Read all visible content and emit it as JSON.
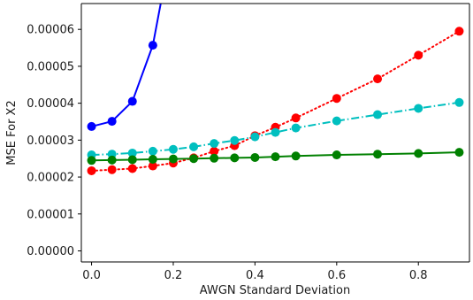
{
  "chart_data": {
    "type": "line",
    "xlabel": "AWGN Standard Deviation",
    "ylabel": "MSE For X2",
    "xlim": [
      -0.025,
      0.925
    ],
    "ylim": [
      -3e-06,
      6.7e-05
    ],
    "xticks": [
      0.0,
      0.2,
      0.4,
      0.6,
      0.8
    ],
    "xtick_labels": [
      "0.0",
      "0.2",
      "0.4",
      "0.6",
      "0.8"
    ],
    "yticks": [
      0.0,
      1e-05,
      2e-05,
      3e-05,
      4e-05,
      5e-05,
      6e-05
    ],
    "ytick_labels": [
      "0.00000",
      "0.00001",
      "0.00002",
      "0.00003",
      "0.00004",
      "0.00005",
      "0.00006"
    ],
    "grid": false,
    "legend": false,
    "series": [
      {
        "color": "#0000ff",
        "line_style": "solid",
        "x": [
          0.0,
          0.05,
          0.1,
          0.15,
          0.2
        ],
        "y": [
          3.37e-05,
          3.51e-05,
          4.05e-05,
          5.57e-05,
          8.5e-05
        ]
      },
      {
        "color": "#ff0000",
        "line_style": "dotted",
        "x": [
          0.0,
          0.05,
          0.1,
          0.15,
          0.2,
          0.25,
          0.3,
          0.35,
          0.4,
          0.45,
          0.5,
          0.6,
          0.7,
          0.8,
          0.9
        ],
        "y": [
          2.17e-05,
          2.2e-05,
          2.23e-05,
          2.3e-05,
          2.38e-05,
          2.52e-05,
          2.7e-05,
          2.85e-05,
          3.12e-05,
          3.35e-05,
          3.6e-05,
          4.13e-05,
          4.66e-05,
          5.3e-05,
          5.95e-05
        ]
      },
      {
        "color": "#00bfbf",
        "line_style": "dashdot",
        "x": [
          0.0,
          0.05,
          0.1,
          0.15,
          0.2,
          0.25,
          0.3,
          0.35,
          0.4,
          0.45,
          0.5,
          0.6,
          0.7,
          0.8,
          0.9
        ],
        "y": [
          2.6e-05,
          2.62e-05,
          2.65e-05,
          2.7e-05,
          2.75e-05,
          2.82e-05,
          2.91e-05,
          2.99e-05,
          3.09e-05,
          3.21e-05,
          3.33e-05,
          3.52e-05,
          3.69e-05,
          3.86e-05,
          4.02e-05
        ]
      },
      {
        "color": "#008000",
        "line_style": "solid",
        "x": [
          0.0,
          0.05,
          0.1,
          0.15,
          0.2,
          0.25,
          0.3,
          0.35,
          0.4,
          0.45,
          0.5,
          0.6,
          0.7,
          0.8,
          0.9
        ],
        "y": [
          2.45e-05,
          2.46e-05,
          2.47e-05,
          2.48e-05,
          2.49e-05,
          2.5e-05,
          2.51e-05,
          2.52e-05,
          2.53e-05,
          2.55e-05,
          2.57e-05,
          2.6e-05,
          2.62e-05,
          2.64e-05,
          2.67e-05
        ]
      }
    ]
  }
}
